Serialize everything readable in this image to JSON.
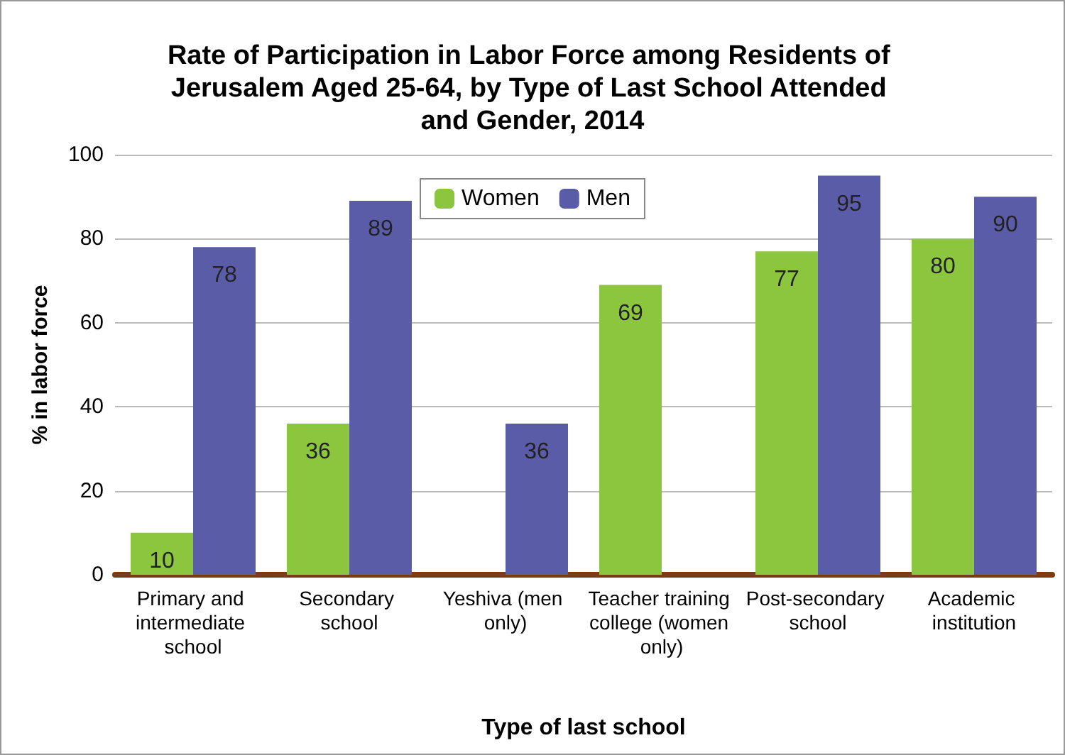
{
  "chart_data": {
    "type": "bar",
    "title": "Rate of Participation in Labor Force among Residents of Jerusalem Aged 25-64, by Type of Last School Attended and Gender, 2014",
    "xlabel": "Type of last school",
    "ylabel": "% in labor force",
    "categories": [
      "Primary and intermediate school",
      "Secondary school",
      "Yeshiva (men only)",
      "Teacher training college (women only)",
      "Post-secondary school",
      "Academic institution"
    ],
    "series": [
      {
        "name": "Women",
        "color": "#8cc63e",
        "values": [
          10,
          36,
          null,
          69,
          77,
          80
        ]
      },
      {
        "name": "Men",
        "color": "#5b5ca8",
        "values": [
          78,
          89,
          36,
          null,
          95,
          90
        ]
      }
    ],
    "ylim": [
      0,
      100
    ],
    "yticks": [
      0,
      20,
      40,
      60,
      80,
      100
    ],
    "grid": "y",
    "legend": "top",
    "data_labels": true
  }
}
